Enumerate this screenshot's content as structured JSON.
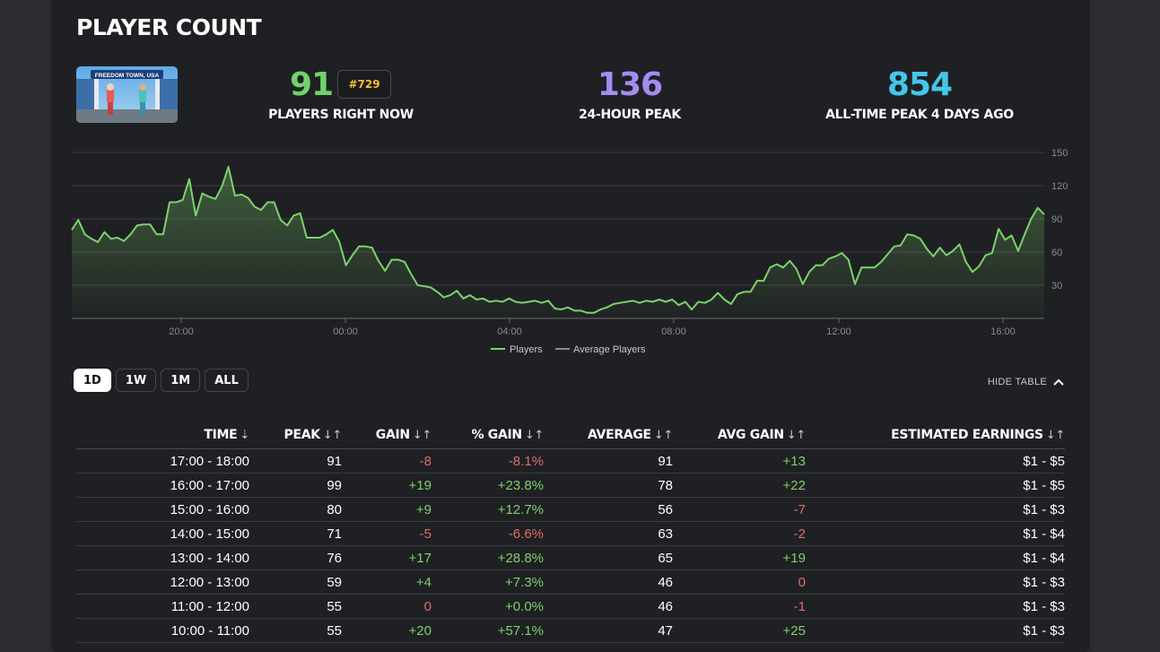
{
  "title": "PLAYER COUNT",
  "thumbnail": {
    "sign_text": "FREEDOM TOWN, USA"
  },
  "stats": {
    "now": {
      "value": "91",
      "label": "PLAYERS RIGHT NOW",
      "rank": "#729"
    },
    "peak24": {
      "value": "136",
      "label": "24-HOUR PEAK"
    },
    "alltime": {
      "value": "854",
      "label": "ALL-TIME PEAK 4 DAYS AGO"
    }
  },
  "colors": {
    "now": "#6fd36a",
    "peak24": "#a48cf2",
    "alltime": "#45c6ea",
    "gain_positive": "#7fd16b",
    "gain_negative": "#e06c6c",
    "rank": "#f2c230"
  },
  "chart_data": {
    "type": "area",
    "x_tick_labels": [
      "20:00",
      "00:00",
      "04:00",
      "08:00",
      "12:00",
      "16:00"
    ],
    "y_tick_labels": [
      30,
      60,
      90,
      120,
      150
    ],
    "ylim": [
      0,
      150
    ],
    "grid": true,
    "legend": {
      "position": "bottom-center",
      "items": [
        "Players",
        "Average Players"
      ]
    },
    "series": [
      {
        "name": "Players",
        "color": "#7bd36b",
        "values": [
          80,
          89,
          76,
          72,
          69,
          78,
          72,
          73,
          70,
          76,
          84,
          85,
          85,
          76,
          76,
          105,
          105,
          107,
          126,
          93,
          113,
          110,
          108,
          119,
          137,
          111,
          112,
          109,
          101,
          98,
          105,
          105,
          89,
          84,
          93,
          95,
          73,
          73,
          73,
          76,
          80,
          69,
          48,
          57,
          65,
          65,
          64,
          52,
          43,
          53,
          53,
          51,
          40,
          30,
          29,
          28,
          24,
          19,
          21,
          25,
          18,
          21,
          17,
          18,
          15,
          16,
          15,
          18,
          15,
          14,
          15,
          16,
          14,
          16,
          9,
          8,
          10,
          7,
          7,
          5,
          5,
          8,
          10,
          13,
          14,
          15,
          16,
          14,
          16,
          15,
          17,
          15,
          17,
          12,
          15,
          8,
          15,
          14,
          17,
          23,
          17,
          13,
          22,
          24,
          24,
          34,
          34,
          46,
          49,
          46,
          52,
          45,
          31,
          42,
          48,
          48,
          54,
          56,
          59,
          53,
          31,
          46,
          46,
          46,
          51,
          58,
          65,
          66,
          76,
          75,
          72,
          63,
          56,
          64,
          57,
          61,
          67,
          51,
          42,
          47,
          57,
          59,
          81,
          71,
          75,
          61,
          76,
          90,
          100,
          94
        ]
      }
    ]
  },
  "range_tabs": [
    "1D",
    "1W",
    "1M",
    "ALL"
  ],
  "active_tab": "1D",
  "hide_table_label": "HIDE TABLE",
  "table": {
    "headers": [
      "TIME",
      "PEAK",
      "GAIN",
      "% GAIN",
      "AVERAGE",
      "AVG GAIN",
      "ESTIMATED EARNINGS"
    ],
    "rows": [
      [
        "17:00 - 18:00",
        "91",
        "-8",
        "-8.1%",
        "91",
        "+13",
        "$1 - $5"
      ],
      [
        "16:00 - 17:00",
        "99",
        "+19",
        "+23.8%",
        "78",
        "+22",
        "$1 - $5"
      ],
      [
        "15:00 - 16:00",
        "80",
        "+9",
        "+12.7%",
        "56",
        "-7",
        "$1 - $3"
      ],
      [
        "14:00 - 15:00",
        "71",
        "-5",
        "-6.6%",
        "63",
        "-2",
        "$1 - $4"
      ],
      [
        "13:00 - 14:00",
        "76",
        "+17",
        "+28.8%",
        "65",
        "+19",
        "$1 - $4"
      ],
      [
        "12:00 - 13:00",
        "59",
        "+4",
        "+7.3%",
        "46",
        "0",
        "$1 - $3"
      ],
      [
        "11:00 - 12:00",
        "55",
        "0",
        "+0.0%",
        "46",
        "-1",
        "$1 - $3"
      ],
      [
        "10:00 - 11:00",
        "55",
        "+20",
        "+57.1%",
        "47",
        "+25",
        "$1 - $3"
      ]
    ]
  }
}
